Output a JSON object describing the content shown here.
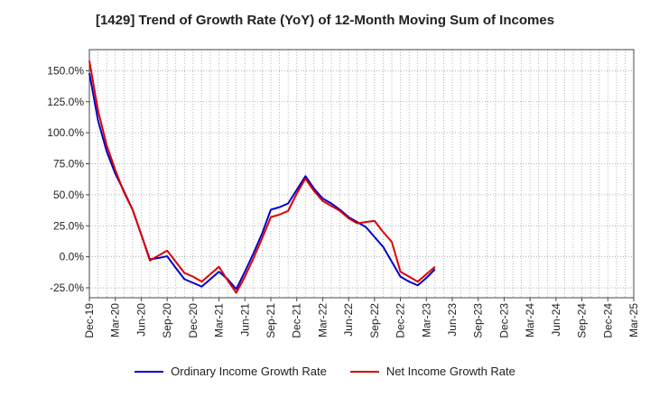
{
  "chart_data": {
    "type": "line",
    "title": "[1429]  Trend of Growth Rate (YoY) of 12-Month Moving Sum of Incomes",
    "xlabel": "",
    "ylabel": "",
    "x_tick_labels": [
      "Dec-19",
      "Mar-20",
      "Jun-20",
      "Sep-20",
      "Dec-20",
      "Mar-21",
      "Jun-21",
      "Sep-21",
      "Dec-21",
      "Mar-22",
      "Jun-22",
      "Sep-22",
      "Dec-22",
      "Mar-23",
      "Jun-23",
      "Sep-23",
      "Dec-23",
      "Mar-24",
      "Jun-24",
      "Sep-24",
      "Dec-24",
      "Mar-25"
    ],
    "y_ticks": [
      -25,
      0,
      25,
      50,
      75,
      100,
      125,
      150
    ],
    "y_tick_labels": [
      "-25.0%",
      "0.0%",
      "25.0%",
      "50.0%",
      "75.0%",
      "100.0%",
      "125.0%",
      "150.0%"
    ],
    "ylim": [
      -33,
      167
    ],
    "grid": true,
    "legend_position": "bottom",
    "series": [
      {
        "name": "Ordinary Income Growth Rate",
        "color": "#0000cc",
        "values": [
          148,
          110,
          85,
          67,
          53,
          38,
          18,
          -2,
          -1,
          0.5,
          -9,
          -18,
          -21,
          -24,
          -18,
          -12,
          -18,
          -26,
          -12,
          3,
          19,
          38,
          40,
          43,
          54,
          65,
          55,
          47,
          43,
          38,
          32,
          28,
          24,
          16,
          8,
          -4,
          -16,
          -20,
          -23,
          -17,
          -10
        ]
      },
      {
        "name": "Net Income Growth Rate",
        "color": "#dd0000",
        "values": [
          158,
          118,
          90,
          70,
          52,
          38,
          18,
          -3,
          1,
          5,
          -4,
          -13,
          -16,
          -20,
          -14,
          -8,
          -19,
          -29,
          -16,
          -1,
          15,
          32,
          34,
          37,
          51,
          63,
          53,
          45,
          41,
          37,
          31,
          27,
          28,
          29,
          20,
          12,
          -12,
          -16,
          -20,
          -14,
          -8
        ]
      }
    ]
  }
}
